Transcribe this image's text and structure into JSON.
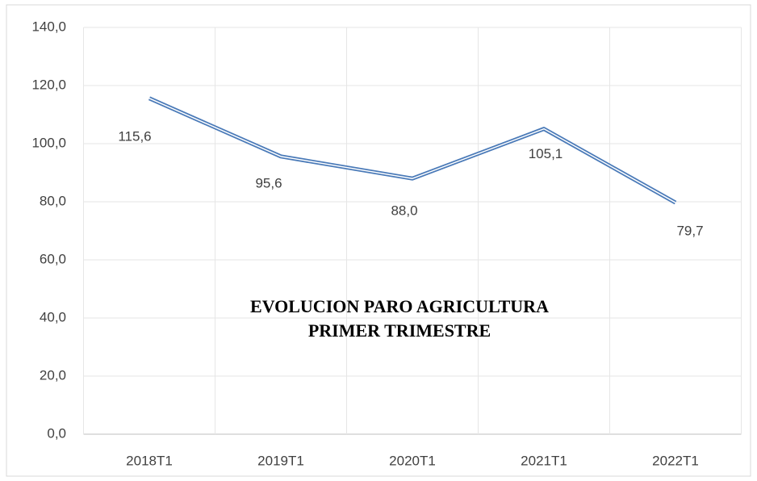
{
  "chart_data": {
    "type": "line",
    "title": [
      "EVOLUCION PARO AGRICULTURA",
      "PRIMER TRIMESTRE"
    ],
    "categories": [
      "2018T1",
      "2019T1",
      "2020T1",
      "2021T1",
      "2022T1"
    ],
    "series": [
      {
        "color": "#4a7ab8",
        "values": [
          115.6,
          95.6,
          88.0,
          105.1,
          79.7
        ],
        "value_labels": [
          "115,6",
          "95,6",
          "88,0",
          "105,1",
          "79,7"
        ]
      }
    ],
    "ylim": [
      0,
      140
    ],
    "yticks": [
      {
        "value": 0,
        "label": "0,0"
      },
      {
        "value": 20,
        "label": "20,0"
      },
      {
        "value": 40,
        "label": "40,0"
      },
      {
        "value": 60,
        "label": "60,0"
      },
      {
        "value": 80,
        "label": "80,0"
      },
      {
        "value": 100,
        "label": "100,0"
      },
      {
        "value": 120,
        "label": "120,0"
      },
      {
        "value": 140,
        "label": "140,0"
      }
    ],
    "grid": true
  }
}
